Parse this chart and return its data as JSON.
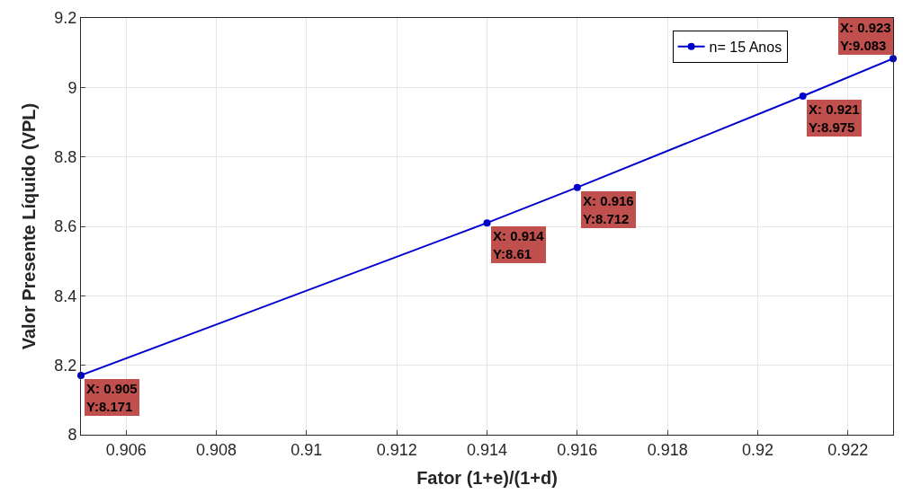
{
  "chart_data": {
    "type": "line",
    "xlabel": "Fator (1+e)/(1+d)",
    "ylabel": "Valor Presente Líquido (VPL)",
    "x": [
      0.905,
      0.914,
      0.916,
      0.921,
      0.923
    ],
    "series": [
      {
        "name": "n= 15 Anos",
        "color": "#0000cc",
        "values": [
          8.171,
          8.61,
          8.712,
          8.975,
          9.083
        ]
      }
    ],
    "xlim": [
      0.905,
      0.923
    ],
    "xticks": [
      0.906,
      0.908,
      0.91,
      0.912,
      0.914,
      0.916,
      0.918,
      0.92,
      0.922
    ],
    "ylim": [
      8,
      9.2
    ],
    "yticks": [
      8,
      8.2,
      8.4,
      8.6,
      8.8,
      9,
      9.2
    ],
    "grid": true,
    "legend": "top right",
    "marker": "circle",
    "line_style": "solid",
    "annotations": [
      {
        "text": "X: 0.905\nY:8.171",
        "x": 0.905,
        "y": 8.171
      },
      {
        "text": "X: 0.914\nY:8.61",
        "x": 0.914,
        "y": 8.61
      },
      {
        "text": "X: 0.916\nY:8.712",
        "x": 0.916,
        "y": 8.712
      },
      {
        "text": "X: 0.921\nY:8.975",
        "x": 0.921,
        "y": 8.975
      },
      {
        "text": "X: 0.923\nY:9.083",
        "x": 0.923,
        "y": 9.083
      }
    ]
  }
}
